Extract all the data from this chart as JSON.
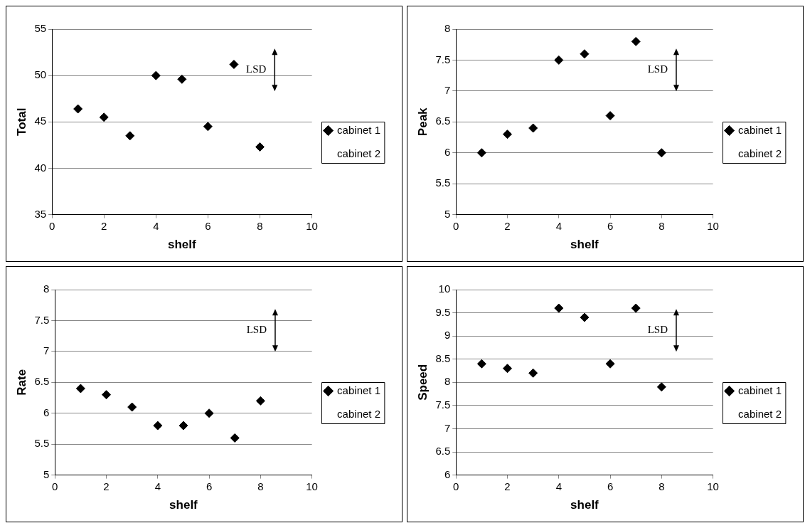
{
  "chart_data": [
    {
      "type": "scatter",
      "xlabel": "shelf",
      "ylabel": "Total",
      "x": [
        1,
        2,
        3,
        4,
        5,
        6,
        7,
        8
      ],
      "series": [
        {
          "name": "cabinet 1",
          "color": "#000000",
          "marker": "diamond",
          "values": [
            46.4,
            45.5,
            43.5,
            50,
            49.6,
            44.5,
            51.2,
            42.3
          ]
        },
        {
          "name": "cabinet 2",
          "marker": "none",
          "values": [
            null,
            null,
            null,
            null,
            null,
            null,
            null,
            null
          ]
        }
      ],
      "xlim": [
        0,
        10
      ],
      "xticks": [
        0,
        2,
        4,
        6,
        8,
        10
      ],
      "ylim": [
        35,
        55
      ],
      "yticks": [
        35,
        40,
        45,
        50,
        55
      ],
      "grid": "y",
      "legend": "right",
      "annotations": [
        "LSD"
      ]
    },
    {
      "type": "scatter",
      "xlabel": "shelf",
      "ylabel": "Peak",
      "x": [
        1,
        2,
        3,
        4,
        5,
        6,
        7,
        8
      ],
      "series": [
        {
          "name": "cabinet 1",
          "color": "#000000",
          "marker": "diamond",
          "values": [
            6.0,
            6.3,
            6.4,
            7.5,
            7.6,
            6.6,
            7.8,
            6.0
          ]
        },
        {
          "name": "cabinet 2",
          "marker": "none",
          "values": [
            null,
            null,
            null,
            null,
            null,
            null,
            null,
            null
          ]
        }
      ],
      "xlim": [
        0,
        10
      ],
      "xticks": [
        0,
        2,
        4,
        6,
        8,
        10
      ],
      "ylim": [
        5,
        8
      ],
      "yticks": [
        5,
        5.5,
        6,
        6.5,
        7,
        7.5,
        8
      ],
      "grid": "y",
      "legend": "right",
      "annotations": [
        "LSD"
      ]
    },
    {
      "type": "scatter",
      "xlabel": "shelf",
      "ylabel": "Rate",
      "x": [
        1,
        2,
        3,
        4,
        5,
        6,
        7,
        8
      ],
      "series": [
        {
          "name": "cabinet 1",
          "color": "#000000",
          "marker": "diamond",
          "values": [
            6.4,
            6.3,
            6.1,
            5.8,
            5.8,
            6.0,
            5.6,
            6.2
          ]
        },
        {
          "name": "cabinet 2",
          "marker": "none",
          "values": [
            null,
            null,
            null,
            null,
            null,
            null,
            null,
            null
          ]
        }
      ],
      "xlim": [
        0,
        10
      ],
      "xticks": [
        0,
        2,
        4,
        6,
        8,
        10
      ],
      "ylim": [
        5,
        8
      ],
      "yticks": [
        5,
        5.5,
        6,
        6.5,
        7,
        7.5,
        8
      ],
      "grid": "y",
      "legend": "right",
      "annotations": [
        "LSD"
      ]
    },
    {
      "type": "scatter",
      "xlabel": "shelf",
      "ylabel": "Speed",
      "x": [
        1,
        2,
        3,
        4,
        5,
        6,
        7,
        8
      ],
      "series": [
        {
          "name": "cabinet 1",
          "color": "#000000",
          "marker": "diamond",
          "values": [
            8.4,
            8.3,
            8.2,
            9.6,
            9.4,
            8.4,
            9.6,
            7.9
          ]
        },
        {
          "name": "cabinet 2",
          "marker": "none",
          "values": [
            null,
            null,
            null,
            null,
            null,
            null,
            null,
            null
          ]
        }
      ],
      "xlim": [
        0,
        10
      ],
      "xticks": [
        0,
        2,
        4,
        6,
        8,
        10
      ],
      "ylim": [
        6,
        10
      ],
      "yticks": [
        6,
        6.5,
        7,
        7.5,
        8,
        8.5,
        9,
        9.5,
        10
      ],
      "grid": "y",
      "legend": "right",
      "annotations": [
        "LSD"
      ]
    }
  ]
}
